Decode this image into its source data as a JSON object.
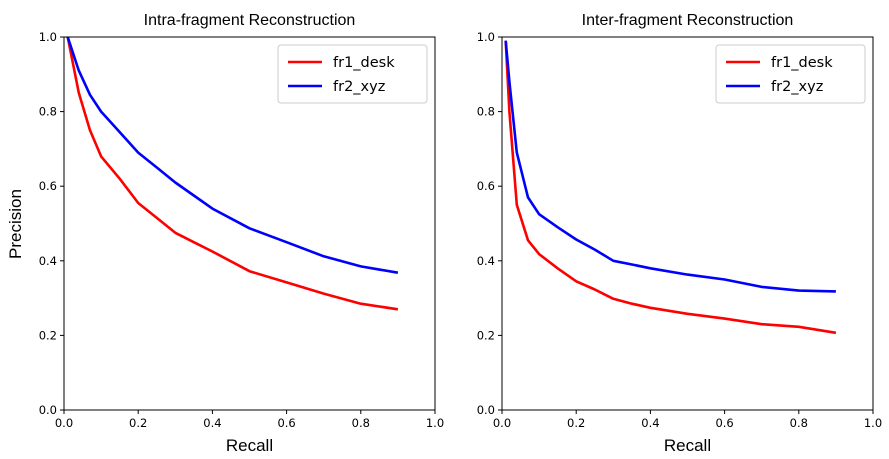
{
  "figure": {
    "ylabel": "Precision"
  },
  "chart_data": [
    {
      "type": "line",
      "title": "Intra-fragment Reconstruction",
      "xlabel": "Recall",
      "ylabel": "Precision",
      "xlim": [
        0.0,
        1.0
      ],
      "ylim": [
        0.0,
        1.0
      ],
      "xticks": [
        "0.0",
        "0.2",
        "0.4",
        "0.6",
        "0.8",
        "1.0"
      ],
      "yticks": [
        "0.0",
        "0.2",
        "0.4",
        "0.6",
        "0.8",
        "1.0"
      ],
      "grid": false,
      "legend_position": "top-right",
      "series": [
        {
          "name": "fr1_desk",
          "color": "#ff0000",
          "points": [
            [
              0.01,
              1.0
            ],
            [
              0.04,
              0.85
            ],
            [
              0.07,
              0.75
            ],
            [
              0.1,
              0.68
            ],
            [
              0.15,
              0.62
            ],
            [
              0.2,
              0.555
            ],
            [
              0.25,
              0.515
            ],
            [
              0.3,
              0.475
            ],
            [
              0.35,
              0.45
            ],
            [
              0.4,
              0.425
            ],
            [
              0.5,
              0.372
            ],
            [
              0.6,
              0.342
            ],
            [
              0.7,
              0.312
            ],
            [
              0.8,
              0.285
            ],
            [
              0.9,
              0.27
            ]
          ]
        },
        {
          "name": "fr2_xyz",
          "color": "#0000ff",
          "points": [
            [
              0.01,
              1.0
            ],
            [
              0.04,
              0.91
            ],
            [
              0.07,
              0.845
            ],
            [
              0.1,
              0.8
            ],
            [
              0.15,
              0.745
            ],
            [
              0.2,
              0.69
            ],
            [
              0.25,
              0.65
            ],
            [
              0.3,
              0.61
            ],
            [
              0.35,
              0.575
            ],
            [
              0.4,
              0.54
            ],
            [
              0.5,
              0.487
            ],
            [
              0.6,
              0.45
            ],
            [
              0.7,
              0.412
            ],
            [
              0.8,
              0.385
            ],
            [
              0.9,
              0.368
            ]
          ]
        }
      ]
    },
    {
      "type": "line",
      "title": "Inter-fragment Reconstruction",
      "xlabel": "Recall",
      "ylabel": "",
      "xlim": [
        0.0,
        1.0
      ],
      "ylim": [
        0.0,
        1.0
      ],
      "xticks": [
        "0.0",
        "0.2",
        "0.4",
        "0.6",
        "0.8",
        "1.0"
      ],
      "yticks": [
        "0.0",
        "0.2",
        "0.4",
        "0.6",
        "0.8",
        "1.0"
      ],
      "grid": false,
      "legend_position": "top-right",
      "series": [
        {
          "name": "fr1_desk",
          "color": "#ff0000",
          "points": [
            [
              0.01,
              0.99
            ],
            [
              0.02,
              0.8
            ],
            [
              0.04,
              0.55
            ],
            [
              0.07,
              0.455
            ],
            [
              0.1,
              0.418
            ],
            [
              0.15,
              0.38
            ],
            [
              0.2,
              0.345
            ],
            [
              0.25,
              0.323
            ],
            [
              0.3,
              0.298
            ],
            [
              0.35,
              0.285
            ],
            [
              0.4,
              0.274
            ],
            [
              0.5,
              0.258
            ],
            [
              0.6,
              0.245
            ],
            [
              0.7,
              0.23
            ],
            [
              0.8,
              0.223
            ],
            [
              0.9,
              0.207
            ]
          ]
        },
        {
          "name": "fr2_xyz",
          "color": "#0000ff",
          "points": [
            [
              0.01,
              0.99
            ],
            [
              0.02,
              0.88
            ],
            [
              0.04,
              0.69
            ],
            [
              0.07,
              0.57
            ],
            [
              0.1,
              0.525
            ],
            [
              0.15,
              0.49
            ],
            [
              0.2,
              0.457
            ],
            [
              0.25,
              0.43
            ],
            [
              0.3,
              0.4
            ],
            [
              0.35,
              0.39
            ],
            [
              0.4,
              0.38
            ],
            [
              0.5,
              0.363
            ],
            [
              0.6,
              0.35
            ],
            [
              0.7,
              0.33
            ],
            [
              0.8,
              0.32
            ],
            [
              0.9,
              0.318
            ]
          ]
        }
      ]
    }
  ]
}
